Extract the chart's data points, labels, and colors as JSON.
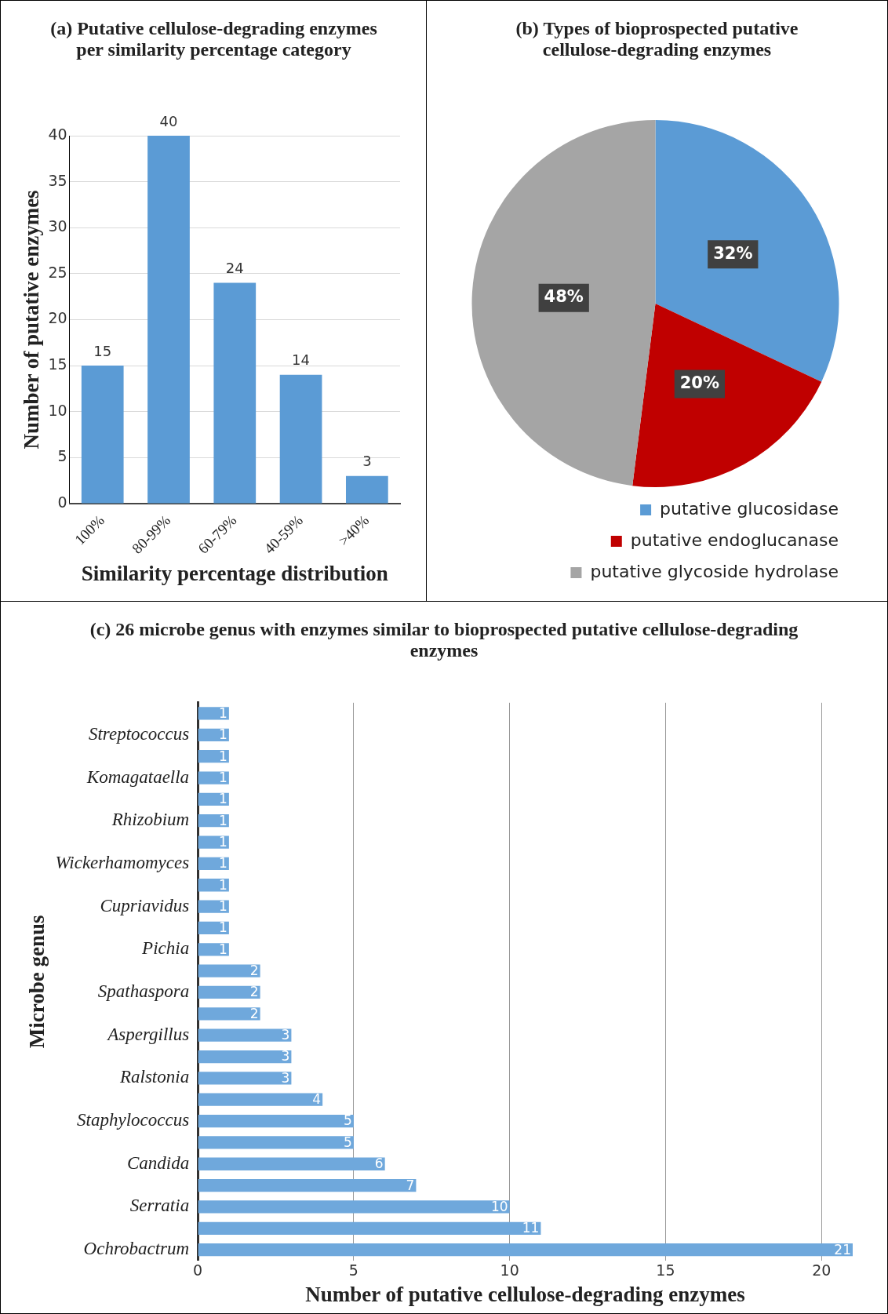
{
  "chart_data": [
    {
      "type": "bar",
      "title": "(a) Putative cellulose-degrading enzymes per similarity percentage category",
      "xlabel": "Similarity percentage distribution",
      "ylabel": "Number of putative enzymes",
      "categories": [
        "100%",
        "80-99%",
        "60-79%",
        "40-59%",
        ">40%"
      ],
      "values": [
        15,
        40,
        24,
        14,
        3
      ],
      "color": "#5b9bd5",
      "ylim": [
        0,
        40
      ],
      "yticks": [
        0,
        5,
        10,
        15,
        20,
        25,
        30,
        35,
        40
      ],
      "grid": "y",
      "data_labels": true
    },
    {
      "type": "pie",
      "title": "(b) Types of bioprospected putative cellulose-degrading enzymes",
      "categories": [
        "putative glucosidase",
        "putative endoglucanase",
        "putative glycoside hydrolase"
      ],
      "values": [
        32,
        20,
        48
      ],
      "value_labels": [
        "32%",
        "20%",
        "48%"
      ],
      "colors": [
        "#5b9bd5",
        "#c00000",
        "#a5a5a5"
      ],
      "legend": "bottom"
    },
    {
      "type": "bar",
      "orientation": "horizontal",
      "title": "(c) 26 microbe genus with enzymes similar to bioprospected putative cellulose-degrading enzymes",
      "xlabel": "Number of putative cellulose-degrading enzymes",
      "ylabel": "Microbe genus",
      "categories": [
        null,
        "Streptococcus",
        null,
        "Komagataella",
        null,
        "Rhizobium",
        null,
        "Wickerhamomyces",
        null,
        "Cupriavidus",
        null,
        "Pichia",
        null,
        "Spathaspora",
        null,
        "Aspergillus",
        null,
        "Ralstonia",
        null,
        "Staphylococcus",
        null,
        "Candida",
        null,
        "Serratia",
        null,
        "Ochrobactrum"
      ],
      "values": [
        1,
        1,
        1,
        1,
        1,
        1,
        1,
        1,
        1,
        1,
        1,
        1,
        2,
        2,
        2,
        3,
        3,
        3,
        4,
        5,
        5,
        6,
        7,
        10,
        11,
        21
      ],
      "color": "#6fa8dc",
      "xlim": [
        0,
        21
      ],
      "xticks": [
        0,
        5,
        10,
        15,
        20
      ],
      "grid": "x",
      "data_labels": true
    }
  ]
}
